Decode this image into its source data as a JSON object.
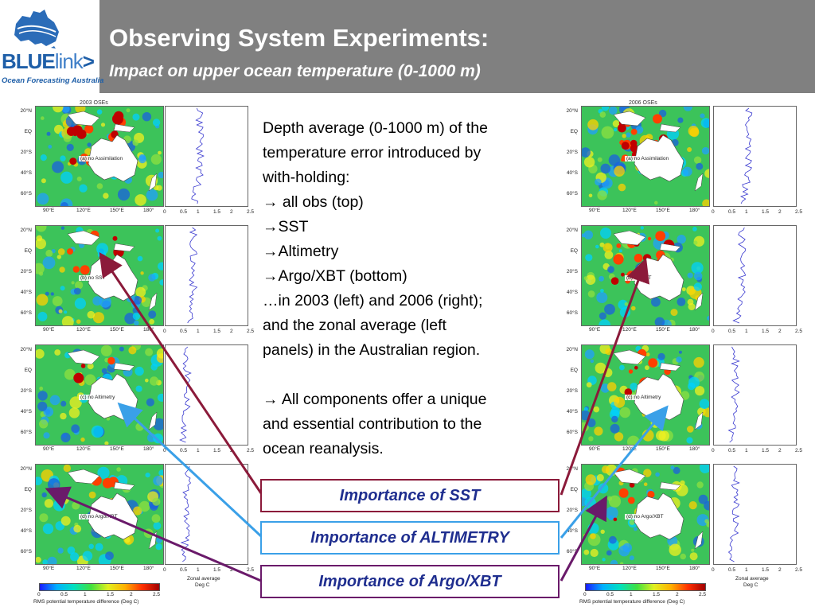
{
  "header": {
    "title": "Observing System Experiments:",
    "subtitle": "Impact on upper ocean temperature (0-1000 m)"
  },
  "logo": {
    "word_main": "BLUE",
    "word_accent": "link",
    "word_arrow": ">",
    "tagline": "Ocean Forecasting Australia"
  },
  "figures": {
    "left_title": "2003 OSEs",
    "right_title": "2006 OSEs",
    "lat_ticks": [
      "20°N",
      "EQ",
      "20°S",
      "40°S",
      "60°S"
    ],
    "lon_ticks": [
      "90°E",
      "120°E",
      "150°E",
      "180°"
    ],
    "zonal_ticks": [
      "0",
      "0.5",
      "1",
      "1.5",
      "2",
      "2.5"
    ],
    "panels": [
      "(a) no Assimilation",
      "(b) no SST",
      "(c) no Altimetry",
      "(d) no Argo/XBT"
    ],
    "zonal_caption_1": "Zonal average",
    "zonal_caption_2": "Deg C",
    "colorbar_ticks": [
      "0",
      "0.5",
      "1",
      "1.5",
      "2",
      "2.5"
    ],
    "colorbar_caption": "RMS potential temperature difference (Deg C)"
  },
  "description": {
    "lines": [
      "Depth average (0-1000 m) of the",
      "temperature error introduced by",
      "with-holding:",
      "→ all obs (top)",
      "→SST",
      "→Altimetry",
      "→Argo/XBT (bottom)",
      "…in 2003 (left) and 2006 (right);",
      "and the zonal average (left",
      "panels) in the Australian region.",
      "",
      "→ All components offer a unique",
      "and essential contribution to the",
      "ocean reanalysis."
    ]
  },
  "boxes": {
    "sst": "Importance of SST",
    "altimetry": "Importance of ALTIMETRY",
    "argo": "Importance of Argo/XBT"
  },
  "colors": {
    "header_bg": "#808080",
    "sst_arrow": "#8b1a3a",
    "altimetry_arrow": "#3aa0e8",
    "argo_arrow": "#6a1a6a",
    "box_text": "#1f2e8f"
  }
}
